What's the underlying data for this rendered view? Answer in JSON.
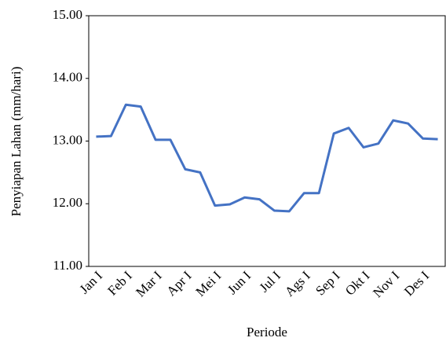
{
  "chart_data": {
    "type": "line",
    "x_label": "Periode",
    "y_label": "Penyiapan Lahan (mm/hari)",
    "categories": [
      "Jan I",
      null,
      "Feb I",
      null,
      "Mar I",
      null,
      "Apr I",
      null,
      "Mei I",
      null,
      "Jun I",
      null,
      "Jul I",
      null,
      "Ags I",
      null,
      "Sep I",
      null,
      "Okt I",
      null,
      "Nov I",
      null,
      "Des I",
      null
    ],
    "series": [
      {
        "name": "Penyiapan Lahan",
        "color": "#4472c4",
        "values": [
          13.07,
          13.08,
          13.58,
          13.55,
          13.02,
          13.02,
          12.55,
          12.5,
          11.97,
          11.99,
          12.1,
          12.07,
          11.89,
          11.88,
          12.17,
          12.17,
          13.12,
          13.21,
          12.9,
          12.96,
          13.33,
          13.28,
          13.04,
          13.03
        ]
      }
    ],
    "ylim": [
      11,
      15
    ],
    "yticks": [
      {
        "value": 11,
        "label": "11.00"
      },
      {
        "value": 12,
        "label": "12.00"
      },
      {
        "value": 13,
        "label": "13.00"
      },
      {
        "value": 14,
        "label": "14.00"
      },
      {
        "value": 15,
        "label": "15.00"
      }
    ],
    "grid": false
  }
}
